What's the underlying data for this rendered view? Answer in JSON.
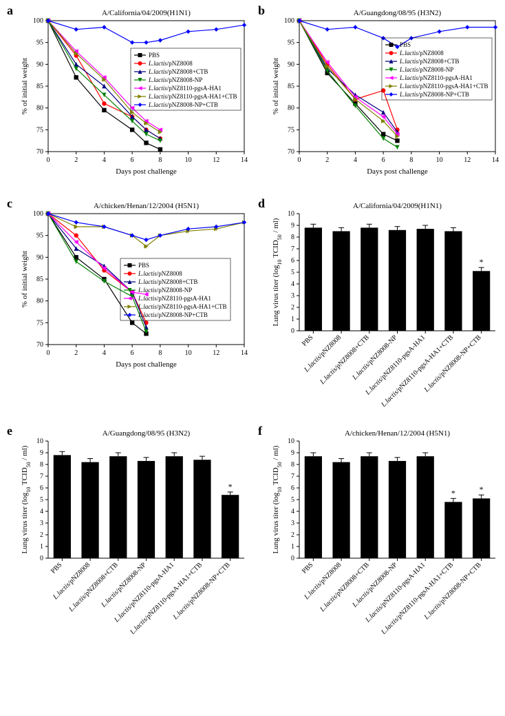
{
  "panels": {
    "a": {
      "label": "a",
      "title": "A/California/04/2009(H1N1)"
    },
    "b": {
      "label": "b",
      "title": "A/Guangdong/08/95 (H3N2)"
    },
    "c": {
      "label": "c",
      "title": "A/chicken/Henan/12/2004 (H5N1)"
    },
    "d": {
      "label": "d",
      "title": "A/California/04/2009(H1N1)"
    },
    "e": {
      "label": "e",
      "title": "A/Guangdong/08/95 (H3N2)"
    },
    "f": {
      "label": "f",
      "title": "A/chicken/Henan/12/2004 (H5N1)"
    }
  },
  "line_chart": {
    "x_label": "Days post challenge",
    "y_label": "% of initial weight",
    "x_ticks": [
      0,
      2,
      4,
      6,
      8,
      10,
      12,
      14
    ],
    "y_ticks": [
      70,
      75,
      80,
      85,
      90,
      95,
      100
    ],
    "xlim": [
      0,
      14
    ],
    "ylim": [
      70,
      100
    ],
    "legend": [
      {
        "label": "PBS",
        "marker": "square",
        "color": "#000000"
      },
      {
        "label_prefix": "L.lactis",
        "label": "/pNZ8008",
        "marker": "circle",
        "color": "#ff0000"
      },
      {
        "label_prefix": "L.lactis",
        "label": "/pNZ8008+CTB",
        "marker": "triangle-up",
        "color": "#000080"
      },
      {
        "label_prefix": "L.lactis",
        "label": "/pNZ8008-NP",
        "marker": "triangle-down",
        "color": "#008000"
      },
      {
        "label_prefix": "L.lactis",
        "label": "/pNZ8110-pgsA-HA1",
        "marker": "triangle-left",
        "color": "#ff00ff"
      },
      {
        "label_prefix": "L.lactis",
        "label": "/pNZ8110-pgsA-HA1+CTB",
        "marker": "triangle-right",
        "color": "#808000"
      },
      {
        "label_prefix": "L.lactis",
        "label": "/pNZ8008-NP+CTB",
        "marker": "diamond",
        "color": "#0000ff"
      }
    ],
    "series_a": {
      "PBS": {
        "x": [
          0,
          2,
          4,
          6,
          7,
          8
        ],
        "y": [
          100,
          87,
          79.5,
          75,
          72,
          70.5
        ],
        "color": "#000000",
        "marker": "square"
      },
      "pNZ8008": {
        "x": [
          0,
          2,
          4,
          6,
          7,
          8
        ],
        "y": [
          100,
          92,
          81,
          78,
          75,
          73
        ],
        "color": "#ff0000",
        "marker": "circle"
      },
      "pNZ8008+CTB": {
        "x": [
          0,
          2,
          4,
          6,
          7,
          8
        ],
        "y": [
          100,
          90,
          85,
          78,
          75,
          73
        ],
        "color": "#000080",
        "marker": "triangle-up"
      },
      "pNZ8008-NP": {
        "x": [
          0,
          2,
          4,
          6,
          7,
          8
        ],
        "y": [
          100,
          89,
          83,
          77,
          74,
          72.5
        ],
        "color": "#008000",
        "marker": "triangle-down"
      },
      "pgsA-HA1": {
        "x": [
          0,
          2,
          4,
          6,
          7,
          8
        ],
        "y": [
          100,
          93,
          87,
          80,
          77,
          75
        ],
        "color": "#ff00ff",
        "marker": "triangle-left"
      },
      "pgsA-HA1+CTB": {
        "x": [
          0,
          2,
          4,
          6,
          7,
          8
        ],
        "y": [
          100,
          92.5,
          86.5,
          79,
          76.5,
          74.5
        ],
        "color": "#808000",
        "marker": "triangle-right"
      },
      "NP+CTB": {
        "x": [
          0,
          2,
          4,
          6,
          7,
          8,
          10,
          12,
          14
        ],
        "y": [
          100,
          98,
          98.5,
          95,
          95,
          95.5,
          97.5,
          98,
          99
        ],
        "color": "#0000ff",
        "marker": "diamond"
      }
    },
    "series_b": {
      "PBS": {
        "x": [
          0,
          2,
          4,
          6,
          7
        ],
        "y": [
          100,
          88,
          81,
          74,
          72.5
        ],
        "color": "#000000",
        "marker": "square"
      },
      "pNZ8008": {
        "x": [
          0,
          2,
          4,
          6,
          7
        ],
        "y": [
          100,
          90,
          82,
          84,
          75
        ],
        "color": "#ff0000",
        "marker": "circle"
      },
      "pNZ8008+CTB": {
        "x": [
          0,
          2,
          4,
          6,
          7
        ],
        "y": [
          100,
          89,
          83,
          79,
          74.5
        ],
        "color": "#000080",
        "marker": "triangle-up"
      },
      "pNZ8008-NP": {
        "x": [
          0,
          2,
          4,
          6,
          7
        ],
        "y": [
          100,
          88.5,
          80.5,
          73,
          71
        ],
        "color": "#008000",
        "marker": "triangle-down"
      },
      "pgsA-HA1": {
        "x": [
          0,
          2,
          4,
          6,
          7
        ],
        "y": [
          100,
          90.5,
          82.5,
          78,
          74
        ],
        "color": "#ff00ff",
        "marker": "triangle-left"
      },
      "pgsA-HA1+CTB": {
        "x": [
          0,
          2,
          4,
          6,
          7
        ],
        "y": [
          100,
          89.5,
          82,
          77,
          73.5
        ],
        "color": "#808000",
        "marker": "triangle-right"
      },
      "NP+CTB": {
        "x": [
          0,
          2,
          4,
          6,
          7,
          8,
          10,
          12,
          14
        ],
        "y": [
          100,
          98,
          98.5,
          96,
          94,
          96,
          97.5,
          98.5,
          98.5
        ],
        "color": "#0000ff",
        "marker": "diamond"
      }
    },
    "series_c": {
      "PBS": {
        "x": [
          0,
          2,
          4,
          6,
          7
        ],
        "y": [
          100,
          90,
          85,
          75,
          72.5
        ],
        "color": "#000000",
        "marker": "square"
      },
      "pNZ8008": {
        "x": [
          0,
          2,
          4,
          6,
          7
        ],
        "y": [
          100,
          95,
          87,
          82,
          75
        ],
        "color": "#ff0000",
        "marker": "circle"
      },
      "pNZ8008+CTB": {
        "x": [
          0,
          2,
          4,
          6,
          7
        ],
        "y": [
          100,
          92,
          88,
          82,
          74
        ],
        "color": "#000080",
        "marker": "triangle-up"
      },
      "pNZ8008-NP": {
        "x": [
          0,
          2,
          4,
          6,
          7
        ],
        "y": [
          100,
          89,
          84.5,
          81,
          73
        ],
        "color": "#008000",
        "marker": "triangle-down"
      },
      "pgsA-HA1": {
        "x": [
          0,
          2,
          4,
          6,
          7
        ],
        "y": [
          100,
          93.5,
          87.5,
          82,
          81.5
        ],
        "color": "#ff00ff",
        "marker": "triangle-left"
      },
      "pgsA-HA1+CTB": {
        "x": [
          0,
          2,
          4,
          6,
          7,
          8,
          10,
          12,
          14
        ],
        "y": [
          100,
          97,
          97,
          95,
          92.5,
          95,
          96,
          96.5,
          98
        ],
        "color": "#808000",
        "marker": "triangle-right"
      },
      "NP+CTB": {
        "x": [
          0,
          2,
          4,
          6,
          7,
          8,
          10,
          12,
          14
        ],
        "y": [
          100,
          98,
          97,
          95,
          94,
          95,
          96.5,
          97,
          98
        ],
        "color": "#0000ff",
        "marker": "diamond"
      }
    }
  },
  "bar_chart": {
    "y_label": "Lung virus titer (log₁₀ TCID₅₀ / ml)",
    "y_ticks": [
      0,
      1,
      2,
      3,
      4,
      5,
      6,
      7,
      8,
      9,
      10
    ],
    "ylim": [
      0,
      10
    ],
    "categories": [
      {
        "label": "PBS"
      },
      {
        "prefix": "L.lactis",
        "label": "/pNZ8008"
      },
      {
        "prefix": "L.lactis",
        "label": "/pNZ8008+CTB"
      },
      {
        "prefix": "L.lactis",
        "label": "/pNZ8008-NP"
      },
      {
        "prefix": "L.lactis",
        "label": "/pNZ8110-pgsA-HA1"
      },
      {
        "prefix": "L.lactis",
        "label": "/pNZ8110-pgsA-HA1+CTB"
      },
      {
        "prefix": "L.lactis",
        "label": "/pNZ8008-NP+CTB"
      }
    ],
    "values_d": [
      8.8,
      8.5,
      8.8,
      8.6,
      8.7,
      8.5,
      5.1
    ],
    "errors_d": [
      0.3,
      0.3,
      0.3,
      0.3,
      0.3,
      0.3,
      0.3
    ],
    "stars_d": [
      false,
      false,
      false,
      false,
      false,
      false,
      true
    ],
    "values_e": [
      8.8,
      8.2,
      8.7,
      8.3,
      8.7,
      8.4,
      5.4
    ],
    "errors_e": [
      0.3,
      0.3,
      0.3,
      0.3,
      0.3,
      0.3,
      0.25
    ],
    "stars_e": [
      false,
      false,
      false,
      false,
      false,
      false,
      true
    ],
    "values_f": [
      8.7,
      8.2,
      8.7,
      8.3,
      8.7,
      4.8,
      5.1
    ],
    "errors_f": [
      0.3,
      0.3,
      0.3,
      0.3,
      0.3,
      0.3,
      0.3
    ],
    "stars_f": [
      false,
      false,
      false,
      false,
      false,
      true,
      true
    ]
  },
  "colors": {
    "bar_fill": "#000000",
    "background": "#ffffff",
    "axis": "#000000"
  },
  "fonts": {
    "panel_label_size": 18,
    "title_size": 11,
    "axis_title_size": 11,
    "tick_size": 10,
    "legend_size": 9
  }
}
